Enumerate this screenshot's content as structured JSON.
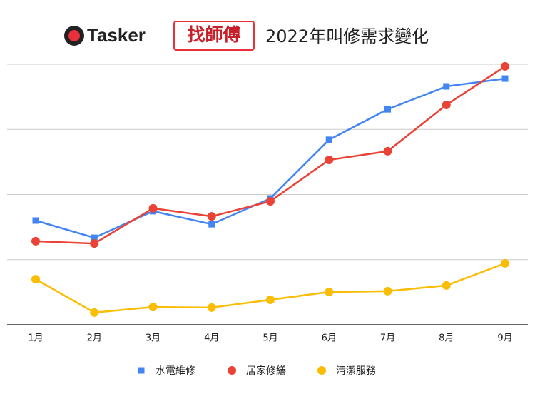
{
  "logo": {
    "brand": "Tasker",
    "partner": "找師傅"
  },
  "chart_data": {
    "type": "line",
    "title": "2022年叫修需求變化",
    "categories": [
      "1月",
      "2月",
      "3月",
      "4月",
      "5月",
      "6月",
      "7月",
      "8月",
      "9月"
    ],
    "series": [
      {
        "name": "水電維修",
        "color": "#4285f4",
        "marker": "square",
        "values": [
          40.0,
          33.4,
          43.6,
          38.6,
          48.5,
          71.0,
          82.7,
          91.5,
          94.5
        ]
      },
      {
        "name": "居家修繕",
        "color": "#ea4335",
        "marker": "circle",
        "values": [
          32.1,
          31.2,
          44.7,
          41.6,
          47.4,
          63.3,
          66.6,
          84.4,
          99.2
        ]
      },
      {
        "name": "清潔服務",
        "color": "#fbbc04",
        "marker": "circle",
        "values": [
          17.5,
          4.7,
          6.8,
          6.6,
          9.6,
          12.6,
          12.9,
          15.1,
          23.6
        ]
      }
    ],
    "ylim": [
      0,
      100
    ],
    "gridlines": [
      0,
      25,
      50,
      75,
      100
    ],
    "grid": true,
    "legend": "bottom"
  }
}
